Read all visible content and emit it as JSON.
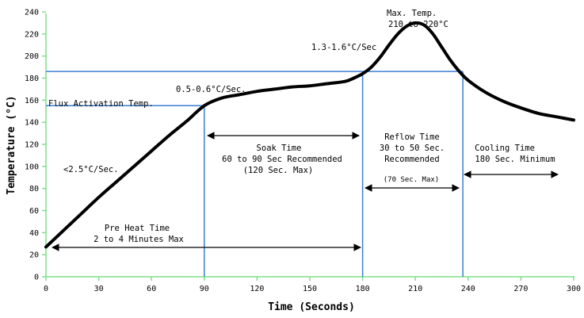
{
  "chart_data": {
    "type": "line",
    "title": "",
    "xlabel": "Time (Seconds)",
    "ylabel": "Temperature (°C)",
    "xlim": [
      0,
      300
    ],
    "ylim": [
      0,
      240
    ],
    "xticks": [
      0,
      30,
      60,
      90,
      120,
      150,
      180,
      210,
      240,
      270,
      300
    ],
    "yticks": [
      0,
      20,
      40,
      60,
      80,
      100,
      120,
      140,
      160,
      180,
      200,
      220,
      240
    ],
    "grid": false,
    "colors": {
      "curve": "#000000",
      "guides": "#3a7fd5",
      "axes": "#7ee08a"
    },
    "series": [
      {
        "x": [
          0,
          10,
          20,
          30,
          40,
          50,
          60,
          70,
          80,
          90,
          100,
          110,
          120,
          130,
          140,
          150,
          160,
          170,
          175,
          180,
          185,
          190,
          195,
          200,
          205,
          210,
          215,
          220,
          225,
          230,
          235,
          240,
          250,
          260,
          270,
          280,
          290,
          300
        ],
        "y": [
          27,
          42,
          57,
          72,
          86,
          100,
          114,
          128,
          141,
          155,
          162,
          165,
          168,
          170,
          172,
          173,
          175,
          177,
          180,
          184,
          190,
          199,
          210,
          220,
          227,
          230,
          228,
          220,
          208,
          196,
          186,
          178,
          167,
          159,
          153,
          148,
          145,
          142
        ]
      }
    ],
    "guides": {
      "vertical_x": [
        90,
        180,
        237
      ],
      "flux_activation_temp": 155,
      "reflow_temp": 186
    },
    "annotations": {
      "max_temp_1": "Max. Temp.",
      "max_temp_2": "210 to 220°C",
      "rate_reflow": "1.3-1.6°C/Sec",
      "rate_soak": "0.5-0.6°C/Sec.",
      "flux_activation": "Flux Activation Temp.",
      "rate_preheat": "<2.5°C/Sec.",
      "soak_1": "Soak Time",
      "soak_2": "60 to 90 Sec Recommended",
      "soak_3": "(120 Sec. Max)",
      "reflow_1": "Reflow Time",
      "reflow_2": "30 to 50 Sec.",
      "reflow_3": "Recommended",
      "reflow_4": "(70 Sec. Max)",
      "cooling_1": "Cooling Time",
      "cooling_2": "180 Sec. Minimum",
      "preheat_1": "Pre Heat Time",
      "preheat_2": "2 to 4 Minutes Max"
    }
  }
}
